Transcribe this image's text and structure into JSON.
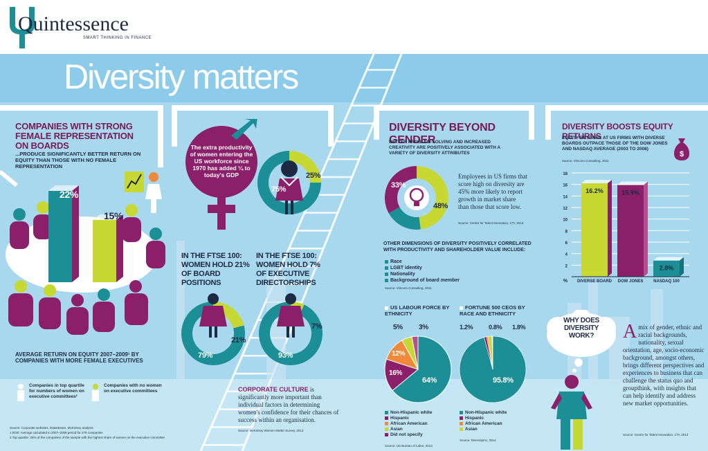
{
  "brand": {
    "name": "Quintessence",
    "tagline": "SMART THINKING IN FINANCE"
  },
  "colors": {
    "teal": "#1b8e96",
    "plum": "#8c1f6a",
    "lime": "#c7d833",
    "navy": "#1d2a44",
    "sky": "#a8d8ee",
    "orange": "#f08a3a"
  },
  "header": {
    "title": "Diversity matters"
  },
  "boards": {
    "title": "COMPANIES WITH STRONG FEMALE REPRESENTATION ON BOARDS",
    "subtitle": "...PRODUCE SIGNIFICANTLY BETTER RETURN ON EQUITY THAN THOSE WITH NO FEMALE REPRESENTATION",
    "bar1_label": "22%",
    "bar2_label": "15%",
    "bar1_value": 22,
    "bar2_value": 15,
    "caption": "AVERAGE RETURN ON EQUITY 2007–2009¹ BY COMPANIES WITH MORE FEMALE EXECUTIVES",
    "legend1": "Companies in top quartile for numbers of women on executive committees²",
    "legend2": "Companies with no women on executive committees",
    "source": "Source: Corporate websites, Datastream, McKinsey analysis",
    "footnote1": "1 ROE: Average calculated in 2007–2009 period for 279 companies",
    "footnote2": "2 Top quartile: 25% of the companies of the sample with the highest share of women on the executive committee"
  },
  "workforce": {
    "callout": "The extra productivity of women entering the US workforce since 1970 has added ¼ to today's GDP",
    "donut_major": "75%",
    "donut_minor": "25%",
    "major_value": 75,
    "minor_value": 25
  },
  "ftse": {
    "board_heading": "IN THE FTSE 100:",
    "board_text": "WOMEN HOLD 21% OF BOARD POSITIONS",
    "exec_heading": "IN THE FTSE 100:",
    "exec_text": "WOMEN HOLD 7% OF EXECUTIVE DIRECTORSHIPS",
    "board_major": "79%",
    "board_minor": "21%",
    "board_value": 21,
    "exec_major": "93%",
    "exec_minor": "7%",
    "exec_value": 7
  },
  "culture": {
    "lead": "CORPORATE CULTURE",
    "text": " is significantly more important than individual factors in determining women's confidence for their chances of success within an organisation.",
    "source": "Source: McKinsey Women Matter Survey, 2013"
  },
  "beyond": {
    "title": "DIVERSITY BEYOND GENDER",
    "subtitle": "BETTER PROBLEM-SOLVING AND INCREASED CREATIVITY ARE POSITIVELY ASSOCIATED WITH A VARIETY OF DIVERSITY ATTRIBUTES",
    "donut_left": "33%",
    "donut_right": "48%",
    "stat_text": "Employees in US firms that score high on diversity are 45% more likely to report growth in market share than those that score low.",
    "stat_source": "Source: Centre for Talent Innovation, CTI, 2013",
    "dims_title": "OTHER DIMENSIONS OF DIVERSITY POSITIVELY CORRELATED WITH PRODUCTIVITY AND SHAREHOLDER VALUE INCLUDE:",
    "dims": [
      "Race",
      "LGBT identity",
      "Nationality",
      "Background of board member"
    ],
    "dims_source": "Source: Vimcom Consulting, 2011"
  },
  "labour": {
    "title": "US LABOUR FORCE BY ETHNICITY",
    "labels": [
      "64%",
      "16%",
      "12%",
      "5%",
      "3%"
    ],
    "legend": [
      "Non-Hispanic white",
      "Hispanic",
      "African American",
      "Asian",
      "Did not specify"
    ],
    "source": "Source: US Bureau of Labor, 2013"
  },
  "ceos": {
    "title": "FORTUNE 500 CEOS BY RACE AND ETHNICITY",
    "labels": [
      "95.8%",
      "1.2%",
      "0.8%",
      "1.8%"
    ],
    "legend": [
      "Non-Hispanic white",
      "Hispanic",
      "African American",
      "Asian"
    ],
    "source": "Source: DiversityInc, 2014"
  },
  "equity": {
    "title": "DIVERSITY BOOSTS EQUITY RETURNS",
    "subtitle": "EQUITY RETURNS AT US FIRMS WITH DIVERSE BOARDS OUTPACE THOSE OF THE DOW JONES AND NASDAQ AVERAGE (2003 TO 2008)",
    "source": "Source: Vimcom Consulting, 2011",
    "y_unit": "%",
    "ticks": [
      "18",
      "16",
      "14",
      "12",
      "10",
      "8",
      "6",
      "4",
      "2"
    ]
  },
  "chart_data": {
    "type": "bar",
    "categories": [
      "DIVERSE BOARD",
      "DOW JONES",
      "NASDAQ 100"
    ],
    "values": [
      16.2,
      15.9,
      2.8
    ],
    "value_labels": [
      "16.2%",
      "15.9%",
      "2.8%"
    ],
    "ylabel": "%",
    "ylim": [
      0,
      18
    ],
    "grid": true
  },
  "why": {
    "bubble": "WHY DOES DIVERSITY WORK?",
    "dropcap": "A",
    "text": " mix of gender, ethnic and racial backgrounds, nationality, sexual orientation, age, socio-economic background, amongst others, brings different perspectives and experiences to business that can challenge the status quo and groupthink, with insights that can help identify and address new market opportunities.",
    "source": "Source: Centre for Talent Innovation, CTI, 2013"
  }
}
